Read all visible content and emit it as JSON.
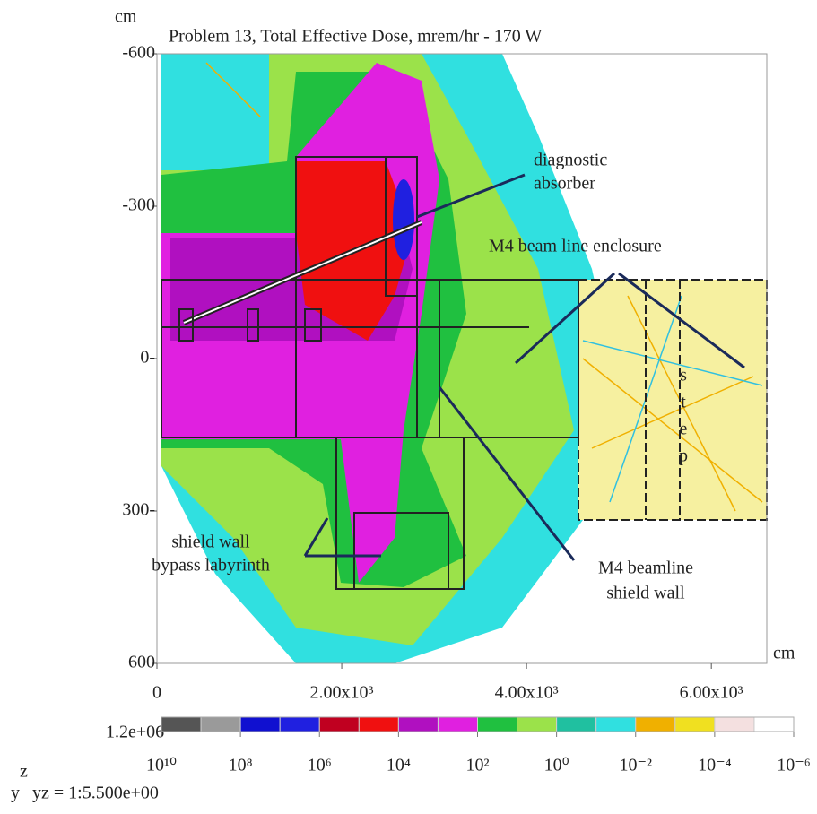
{
  "chart_data": {
    "type": "heatmap",
    "title": "Problem 13, Total Effective Dose, mrem/hr - 170 W",
    "y_unit_label": "cm",
    "x_unit_label": "cm",
    "xlim": [
      0,
      6600
    ],
    "ylim": [
      -600,
      600
    ],
    "xticks": [
      0,
      {
        "value": 2000,
        "label": "2.00x10³"
      },
      {
        "value": 4000,
        "label": "4.00x10³"
      },
      {
        "value": 6000,
        "label": "6.00x10³"
      }
    ],
    "yticks": [
      {
        "value": -600,
        "label": "-600"
      },
      {
        "value": -300,
        "label": "-300"
      },
      {
        "value": 0,
        "label": "0-"
      },
      {
        "value": 300,
        "label": "300-"
      },
      {
        "value": 600,
        "label": "600"
      }
    ],
    "colorbar": {
      "max_label": "1.2e+06",
      "log": true,
      "lim": [
        10000000000,
        1e-06
      ],
      "colors": [
        "#555555",
        "#9a9a9a",
        "#1010d0",
        "#2020e0",
        "#c00020",
        "#f01010",
        "#b010c0",
        "#e020e0",
        "#20c040",
        "#9be24a",
        "#20c0a0",
        "#30e0e0",
        "#f0b000",
        "#f0e020",
        "#f4e0e0",
        "#ffffff"
      ],
      "ticks": [
        {
          "value": 10000000000,
          "label": "10¹⁰"
        },
        {
          "value": 100000000,
          "label": "10⁸"
        },
        {
          "value": 1000000,
          "label": "10⁶"
        },
        {
          "value": 10000,
          "label": "10⁴"
        },
        {
          "value": 100,
          "label": "10²"
        },
        {
          "value": 1,
          "label": "10⁰"
        },
        {
          "value": 0.01,
          "label": "10⁻²"
        },
        {
          "value": 0.0001,
          "label": "10⁻⁴"
        },
        {
          "value": 1e-06,
          "label": "10⁻⁶"
        }
      ]
    },
    "orientation": {
      "z": "z",
      "y": "y",
      "scale": "yz = 1:5.500e+00"
    },
    "annotations": [
      {
        "lines": [
          "diagnostic",
          "absorber"
        ]
      },
      {
        "lines": [
          "M4 beam line enclosure"
        ]
      },
      {
        "lines": [
          "s",
          "t",
          "e",
          "p"
        ]
      },
      {
        "lines": [
          "shield wall",
          "bypass labyrinth"
        ]
      },
      {
        "lines": [
          "M4 beamline",
          "shield wall"
        ]
      }
    ]
  }
}
